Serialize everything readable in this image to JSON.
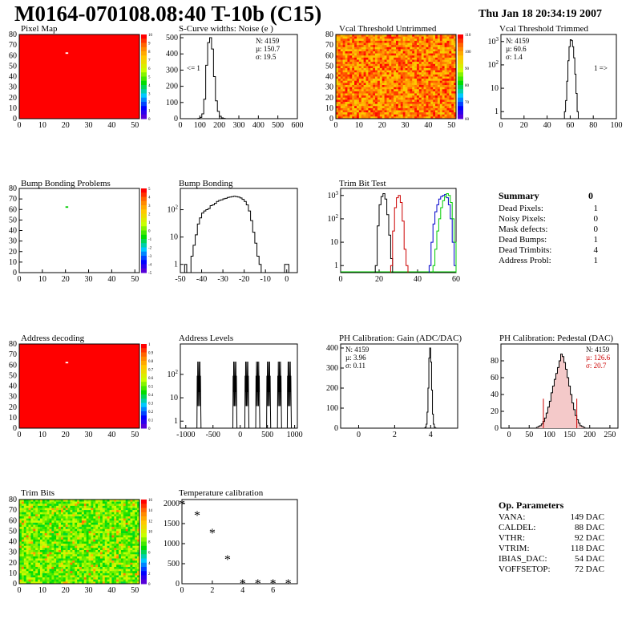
{
  "header": {
    "title": "M0164-070108.08:40 T-10b (C15)",
    "date": "Thu Jan 18 20:34:19 2007"
  },
  "colors": {
    "red": "#ff0000",
    "axis": "#000000",
    "trimRed": "#cc0000",
    "trimBlue": "#0000cc",
    "trimGreen": "#00cc00"
  },
  "panels": {
    "pixel_map": {
      "title": "Pixel Map"
    },
    "scurve": {
      "title": "S-Curve widths: Noise (e )",
      "stats": [
        "N: 4159",
        "µ: 150.7",
        "σ: 19.5"
      ],
      "underflow": "<= 1"
    },
    "vcal_untrimmed": {
      "title": "Vcal Threshold Untrimmed"
    },
    "vcal_trimmed": {
      "title": "Vcal Threshold Trimmed",
      "stats": [
        "N: 4159",
        "µ: 60.6",
        "σ:  1.4"
      ],
      "overflow": "1 =>"
    },
    "bump_problems": {
      "title": "Bump Bonding Problems"
    },
    "bump_bonding": {
      "title": "Bump Bonding"
    },
    "trim_bit_test": {
      "title": "Trim Bit Test"
    },
    "address_decoding": {
      "title": "Address decoding"
    },
    "address_levels": {
      "title": "Address Levels"
    },
    "ph_gain": {
      "title": "PH Calibration: Gain (ADC/DAC)",
      "stats": [
        "N: 4159",
        " µ: 3.96",
        "σ: 0.11"
      ]
    },
    "ph_pedestal": {
      "title": "PH Calibration: Pedestal (DAC)",
      "stats": [
        "N: 4159",
        "µ: 126.6",
        "σ: 20.7"
      ]
    },
    "trim_bits": {
      "title": "Trim Bits"
    },
    "temperature": {
      "title": "Temperature calibration"
    }
  },
  "summary": {
    "title": "Summary",
    "total": "0",
    "rows": [
      {
        "label": "Dead Pixels:",
        "value": "1"
      },
      {
        "label": "Noisy Pixels:",
        "value": "0"
      },
      {
        "label": "Mask defects:",
        "value": "0"
      },
      {
        "label": "Dead Bumps:",
        "value": "1"
      },
      {
        "label": "Dead Trimbits:",
        "value": "4"
      },
      {
        "label": "Address Probl:",
        "value": "1"
      }
    ]
  },
  "op_parameters": {
    "title": "Op. Parameters",
    "rows": [
      {
        "label": "VANA:",
        "value": "149 DAC"
      },
      {
        "label": "CALDEL:",
        "value": "88 DAC"
      },
      {
        "label": "VTHR:",
        "value": "92 DAC"
      },
      {
        "label": "VTRIM:",
        "value": "118 DAC"
      },
      {
        "label": "IBIAS_DAC:",
        "value": "54 DAC"
      },
      {
        "label": "VOFFSETOP:",
        "value": "72 DAC"
      }
    ]
  },
  "chart_data": [
    {
      "id": "pixel_map",
      "type": "heatmap",
      "xlim": [
        0,
        52
      ],
      "ylim": [
        0,
        80
      ],
      "xticks": [
        0,
        10,
        20,
        30,
        40,
        50
      ],
      "yticks": [
        0,
        10,
        20,
        30,
        40,
        50,
        60,
        70,
        80
      ],
      "zticks": [
        0,
        1,
        2,
        3,
        4,
        5,
        6,
        7,
        8,
        9,
        10
      ],
      "fill": "#ff0000",
      "dead_pixels": [
        [
          20,
          63
        ]
      ]
    },
    {
      "id": "scurve",
      "type": "bar",
      "xlim": [
        0,
        600
      ],
      "ylim": [
        0,
        520
      ],
      "xticks": [
        0,
        100,
        200,
        300,
        400,
        500,
        600
      ],
      "yticks": [
        0,
        100,
        200,
        300,
        400,
        500
      ],
      "bin_width": 10,
      "x0": 90,
      "values": [
        2,
        8,
        30,
        120,
        330,
        470,
        500,
        430,
        260,
        110,
        45,
        15,
        5,
        2
      ]
    },
    {
      "id": "vcal_untrimmed",
      "type": "heatmap",
      "xlim": [
        0,
        52
      ],
      "ylim": [
        0,
        80
      ],
      "xticks": [
        0,
        10,
        20,
        30,
        40,
        50
      ],
      "yticks": [
        0,
        10,
        20,
        30,
        40,
        50,
        60,
        70,
        80
      ],
      "zticks": [
        60,
        70,
        80,
        90,
        100,
        110
      ]
    },
    {
      "id": "vcal_trimmed",
      "type": "bar",
      "scale": "log",
      "xlim": [
        0,
        100
      ],
      "ylim": [
        0.5,
        2000
      ],
      "xticks": [
        0,
        20,
        40,
        60,
        80,
        100
      ],
      "yticks": [
        1,
        10,
        100,
        1000
      ],
      "bin_width": 1,
      "x0": 55,
      "values": [
        1,
        3,
        20,
        150,
        600,
        1200,
        1100,
        600,
        200,
        40,
        6,
        1
      ]
    },
    {
      "id": "bump_problems",
      "type": "heatmap",
      "xlim": [
        0,
        52
      ],
      "ylim": [
        0,
        80
      ],
      "xticks": [
        0,
        10,
        20,
        30,
        40,
        50
      ],
      "yticks": [
        0,
        10,
        20,
        30,
        40,
        50,
        60,
        70,
        80
      ],
      "zticks": [
        -5,
        -4,
        -3,
        -2,
        -1,
        0,
        1,
        2,
        3,
        4,
        5
      ],
      "fill": "#ffffff",
      "dead_bumps": [
        [
          20,
          63
        ]
      ]
    },
    {
      "id": "bump_bonding",
      "type": "bar",
      "scale": "log",
      "xlim": [
        -50,
        5
      ],
      "ylim": [
        0.5,
        600
      ],
      "xticks": [
        -50,
        -40,
        -30,
        -20,
        -10,
        0
      ],
      "yticks": [
        1,
        10,
        100
      ],
      "bin_width": 1,
      "x0": -48,
      "values": [
        1,
        0,
        0,
        2,
        5,
        12,
        30,
        50,
        75,
        90,
        100,
        110,
        140,
        150,
        170,
        200,
        220,
        230,
        250,
        260,
        280,
        290,
        300,
        310,
        300,
        290,
        270,
        240,
        200,
        150,
        90,
        40,
        15,
        6,
        2,
        1,
        0,
        0,
        0,
        0,
        0,
        0,
        0,
        0,
        0,
        0,
        0,
        1,
        1
      ]
    },
    {
      "id": "trim_bit_test",
      "type": "line",
      "scale": "log",
      "xlim": [
        0,
        60
      ],
      "ylim": [
        0.5,
        2000
      ],
      "xticks": [
        0,
        20,
        40,
        60
      ],
      "yticks": [
        1,
        10,
        100,
        1000
      ],
      "series": [
        {
          "color": "#000000",
          "x0": 18,
          "values": [
            1,
            50,
            400,
            900,
            1200,
            700,
            150,
            20,
            2
          ]
        },
        {
          "color": "#cc0000",
          "x0": 26,
          "values": [
            1,
            30,
            300,
            800,
            1000,
            500,
            80,
            5,
            1
          ]
        },
        {
          "color": "#0000cc",
          "x0": 46,
          "values": [
            1,
            10,
            60,
            200,
            400,
            700,
            900,
            1000,
            1100,
            800,
            400,
            100,
            10,
            1
          ]
        },
        {
          "color": "#00cc00",
          "x0": 48,
          "values": [
            1,
            5,
            30,
            100,
            300,
            600,
            900,
            1200,
            1000,
            500,
            100,
            10
          ]
        }
      ]
    },
    {
      "id": "address_decoding",
      "type": "heatmap",
      "xlim": [
        0,
        52
      ],
      "ylim": [
        0,
        80
      ],
      "xticks": [
        0,
        10,
        20,
        30,
        40,
        50
      ],
      "yticks": [
        0,
        10,
        20,
        30,
        40,
        50,
        60,
        70,
        80
      ],
      "zticks": [
        0,
        0.1,
        0.2,
        0.3,
        0.4,
        0.5,
        0.6,
        0.7,
        0.8,
        0.9,
        1
      ],
      "fill": "#ff0000",
      "problems": [
        [
          20,
          63
        ]
      ]
    },
    {
      "id": "address_levels",
      "type": "bar",
      "scale": "log",
      "xlim": [
        -1100,
        1050
      ],
      "ylim": [
        0.5,
        2000
      ],
      "xticks": [
        -1000,
        -500,
        0,
        500,
        1000
      ],
      "yticks": [
        1,
        10,
        100
      ],
      "peaks": [
        -760,
        -100,
        120,
        320,
        520,
        720,
        900
      ],
      "peak_height": 350
    },
    {
      "id": "ph_gain",
      "type": "bar",
      "xlim": [
        -1,
        5.5
      ],
      "ylim": [
        0,
        420
      ],
      "xticks": [
        0,
        2,
        4
      ],
      "yticks": [
        0,
        100,
        200,
        300,
        400
      ],
      "bin_width": 0.05,
      "x0": 3.65,
      "values": [
        1,
        5,
        20,
        80,
        200,
        350,
        400,
        330,
        190,
        70,
        20,
        5,
        1
      ]
    },
    {
      "id": "ph_pedestal",
      "type": "bar",
      "xlim": [
        -20,
        270
      ],
      "ylim": [
        0,
        100
      ],
      "xticks": [
        0,
        50,
        100,
        150,
        200,
        250
      ],
      "yticks": [
        0,
        20,
        40,
        60,
        80
      ],
      "bin_width": 4,
      "x0": 68,
      "values": [
        1,
        2,
        3,
        5,
        8,
        12,
        18,
        25,
        32,
        42,
        50,
        58,
        65,
        72,
        80,
        88,
        85,
        78,
        70,
        60,
        50,
        40,
        30,
        22,
        15,
        10,
        6,
        3,
        2,
        1
      ],
      "mean": 126.6,
      "sigma": 20.7
    },
    {
      "id": "trim_bits",
      "type": "heatmap",
      "xlim": [
        0,
        52
      ],
      "ylim": [
        0,
        80
      ],
      "xticks": [
        0,
        10,
        20,
        30,
        40,
        50
      ],
      "yticks": [
        0,
        10,
        20,
        30,
        40,
        50,
        60,
        70,
        80
      ],
      "zticks": [
        0,
        2,
        4,
        6,
        8,
        10,
        12,
        14,
        16
      ]
    },
    {
      "id": "temperature",
      "type": "scatter",
      "xlim": [
        0,
        7.6
      ],
      "ylim": [
        0,
        2100
      ],
      "xticks": [
        0,
        2,
        4,
        6
      ],
      "yticks": [
        0,
        500,
        1000,
        1500,
        2000
      ],
      "x": [
        0,
        1,
        2,
        3,
        4,
        5,
        6,
        7
      ],
      "y": [
        2000,
        1720,
        1280,
        620,
        20,
        20,
        20,
        20
      ]
    }
  ]
}
